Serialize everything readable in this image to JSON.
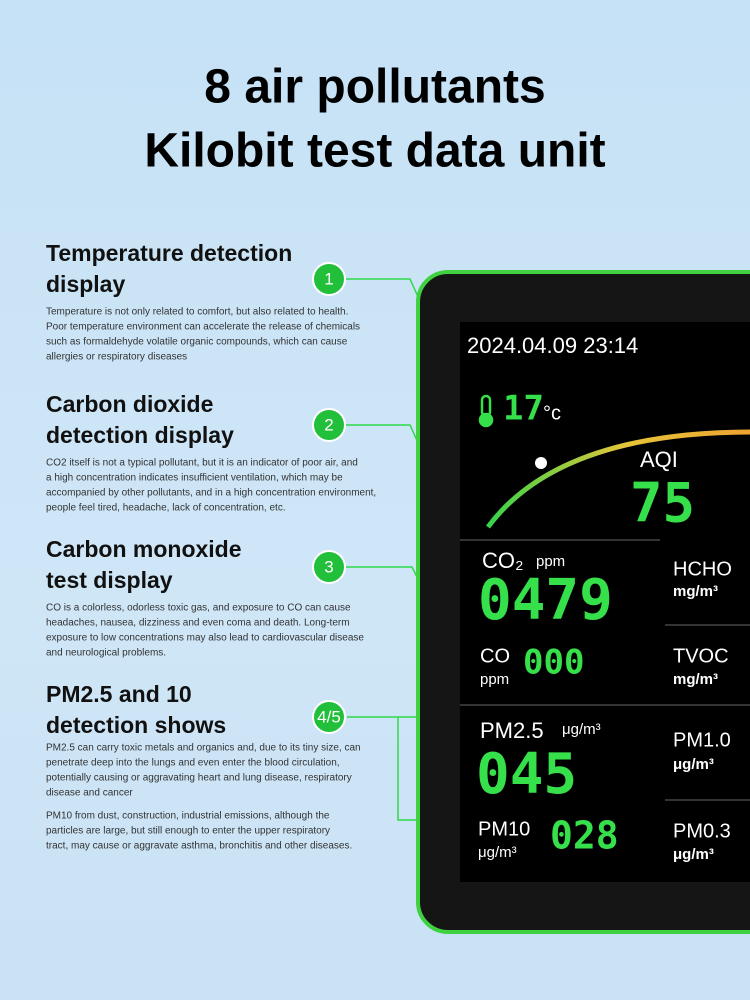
{
  "title": [
    "8 air pollutants",
    "Kilobit test data unit"
  ],
  "sections": [
    {
      "marker": "1",
      "heading": [
        "Temperature detection",
        "display"
      ],
      "description": [
        [
          "Temperature is not only related to comfort, but also related to health.",
          "Poor temperature environment can accelerate the release of chemicals",
          "such as formaldehyde volatile organic compounds, which can cause",
          "allergies or respiratory diseases"
        ]
      ]
    },
    {
      "marker": "2",
      "heading": [
        "Carbon dioxide",
        "detection display"
      ],
      "description": [
        [
          "CO2 itself is not a typical pollutant, but it is an indicator of poor air, and",
          "a high concentration indicates insufficient ventilation, which may be",
          "accompanied by other pollutants, and in a high concentration environment,",
          "people feel tired, headache, lack of concentration, etc."
        ]
      ]
    },
    {
      "marker": "3",
      "heading": [
        "Carbon monoxide",
        "test display"
      ],
      "description": [
        [
          "CO is a colorless, odorless toxic gas, and exposure to CO can cause",
          "headaches, nausea, dizziness and even coma and death. Long-term",
          "exposure to low concentrations may also lead to cardiovascular disease",
          "and neurological problems."
        ]
      ]
    },
    {
      "marker": "4/5",
      "heading": [
        "PM2.5 and 10",
        "detection shows"
      ],
      "description": [
        [
          "PM2.5 can carry toxic metals and organics and, due to its tiny size, can",
          "penetrate deep into the lungs and even enter the blood circulation,",
          "potentially causing or aggravating heart and lung disease, respiratory",
          "disease and cancer"
        ],
        [
          "PM10 from dust, construction, industrial emissions, although the",
          "particles are large, but still enough to enter the upper respiratory",
          "tract, may cause or aggravate asthma, bronchitis and other diseases."
        ]
      ]
    }
  ],
  "device": {
    "datetime": "2024.04.09 23:14",
    "temperature": {
      "value": "17",
      "unit": "°c"
    },
    "aqi": {
      "label": "AQI",
      "value": "75"
    },
    "readings": [
      {
        "label": "CO₂",
        "unit": "ppm",
        "value": "0479"
      },
      {
        "label": "HCHO",
        "unit": "mg/m³"
      },
      {
        "label": "CO",
        "unit": "ppm",
        "value": "000"
      },
      {
        "label": "TVOC",
        "unit": "mg/m³"
      },
      {
        "label": "PM2.5",
        "unit": "μg/m³",
        "value": "045"
      },
      {
        "label": "PM1.0",
        "unit": "μg/m³"
      },
      {
        "label": "PM10",
        "unit": "μg/m³",
        "value": "028"
      },
      {
        "label": "PM0.3",
        "unit": "μg/m³"
      }
    ]
  }
}
